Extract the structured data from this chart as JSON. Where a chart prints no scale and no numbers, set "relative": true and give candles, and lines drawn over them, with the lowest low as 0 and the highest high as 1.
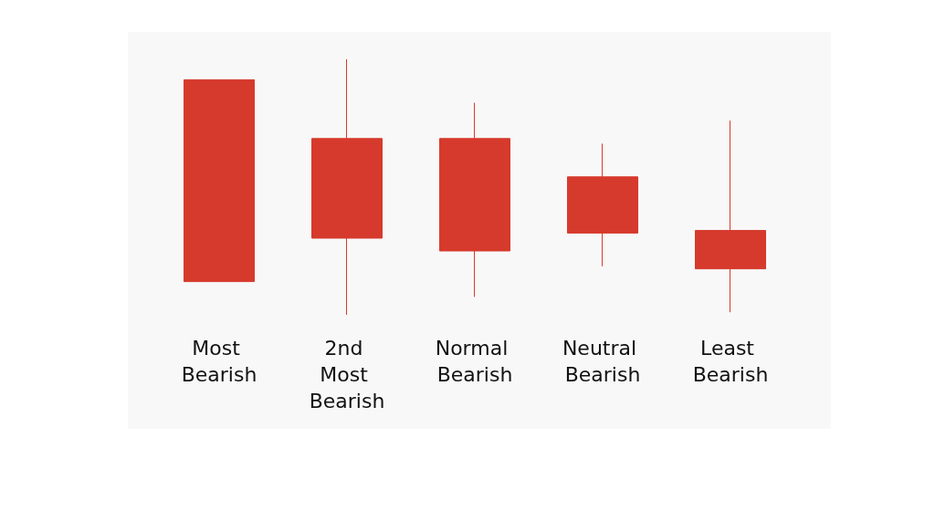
{
  "chart_data": {
    "type": "candlestick",
    "relative": true,
    "categories": [
      "Most Bearish",
      "2nd Most Bearish",
      "Normal Bearish",
      "Neutral Bearish",
      "Least Bearish"
    ],
    "ohlc": [
      [
        0.92,
        0.92,
        0.13,
        0.13
      ],
      [
        0.69,
        1,
        0,
        0.3
      ],
      [
        0.69,
        0.83,
        0.07,
        0.25
      ],
      [
        0.54,
        0.67,
        0.19,
        0.32
      ],
      [
        0.33,
        0.76,
        0.01,
        0.18
      ]
    ],
    "color": "#d63a2c"
  }
}
